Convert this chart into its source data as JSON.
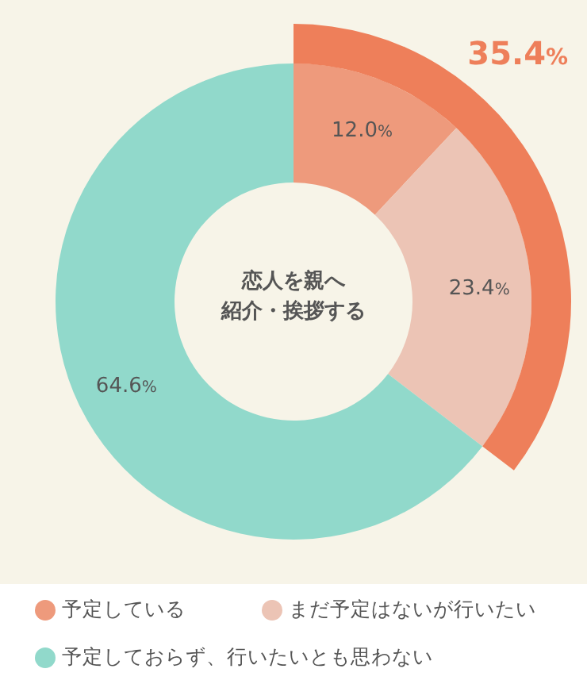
{
  "chart_data": {
    "type": "donut",
    "title": "恋人を親へ紹介・挨拶する",
    "categories": [
      "予定している",
      "まだ予定はないが行いたい",
      "予定しておらず、行いたいとも思わない"
    ],
    "legend": "bottom",
    "series": [
      {
        "values": [
          12.0,
          23.4,
          64.6
        ],
        "colors": [
          "#ee9a7c",
          "#ecc4b5",
          "#91d9cb"
        ],
        "value_labels": [
          "12.0%",
          "23.4%",
          "64.6%"
        ]
      },
      {
        "values": [
          35.4,
          null,
          null
        ],
        "color": "#ee7f5a",
        "value_labels": [
          "35.4%",
          null,
          null
        ]
      }
    ]
  }
}
